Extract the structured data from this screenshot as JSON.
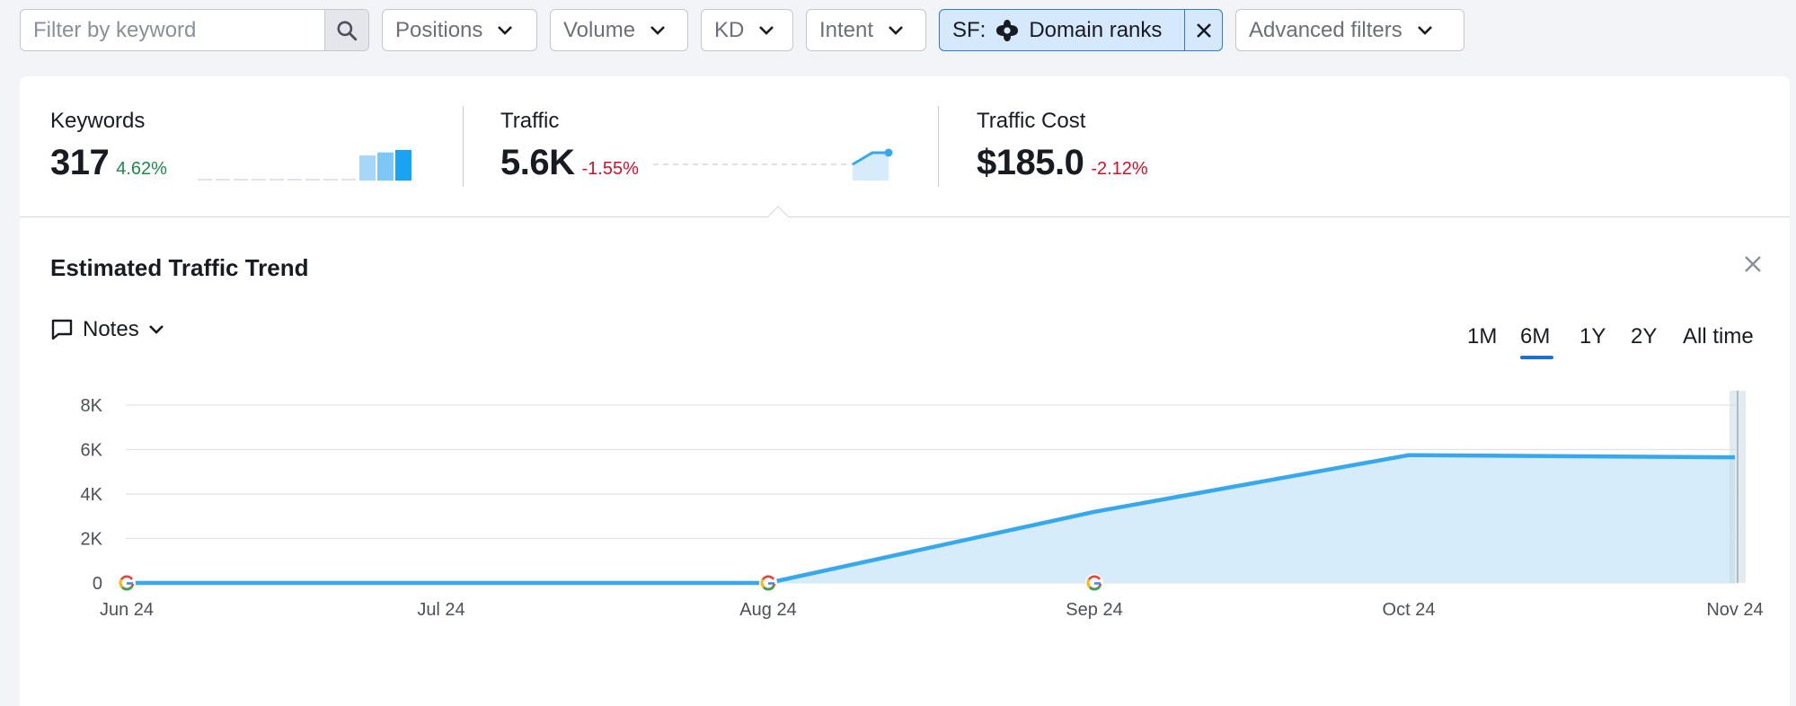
{
  "filters": {
    "search_placeholder": "Filter by keyword",
    "dropdowns": [
      "Positions",
      "Volume",
      "KD",
      "Intent"
    ],
    "sf_prefix": "SF:",
    "sf_label": "Domain ranks",
    "advanced": "Advanced filters"
  },
  "metrics": {
    "keywords": {
      "label": "Keywords",
      "value": "317",
      "delta": "4.62%",
      "bars": [
        0,
        0,
        0,
        0,
        0,
        0,
        0,
        0,
        0,
        0.82,
        0.92,
        1.0
      ]
    },
    "traffic": {
      "label": "Traffic",
      "value": "5.6K",
      "delta": "-1.55%"
    },
    "traffic_cost": {
      "label": "Traffic Cost",
      "value": "$185.0",
      "delta": "-2.12%"
    }
  },
  "trend": {
    "title": "Estimated Traffic Trend",
    "notes_label": "Notes",
    "ranges": [
      "1M",
      "6M",
      "1Y",
      "2Y",
      "All time"
    ],
    "active_range": "6M"
  },
  "chart_data": {
    "type": "area",
    "x": [
      "Jun 24",
      "Jul 24",
      "Aug 24",
      "Sep 24",
      "Oct 24",
      "Nov 24"
    ],
    "y": [
      0,
      0,
      0,
      3200,
      5750,
      5650
    ],
    "ylim": [
      0,
      8000
    ],
    "yticks": [
      0,
      2000,
      4000,
      6000,
      8000
    ],
    "ytick_labels": [
      "0",
      "2K",
      "4K",
      "6K",
      "8K"
    ],
    "google_update_markers": [
      "Jun 24",
      "Aug 24",
      "Sep 24"
    ],
    "grid": true,
    "colors": {
      "line": "#35a8f0",
      "fill": "#d6ecfb"
    }
  }
}
